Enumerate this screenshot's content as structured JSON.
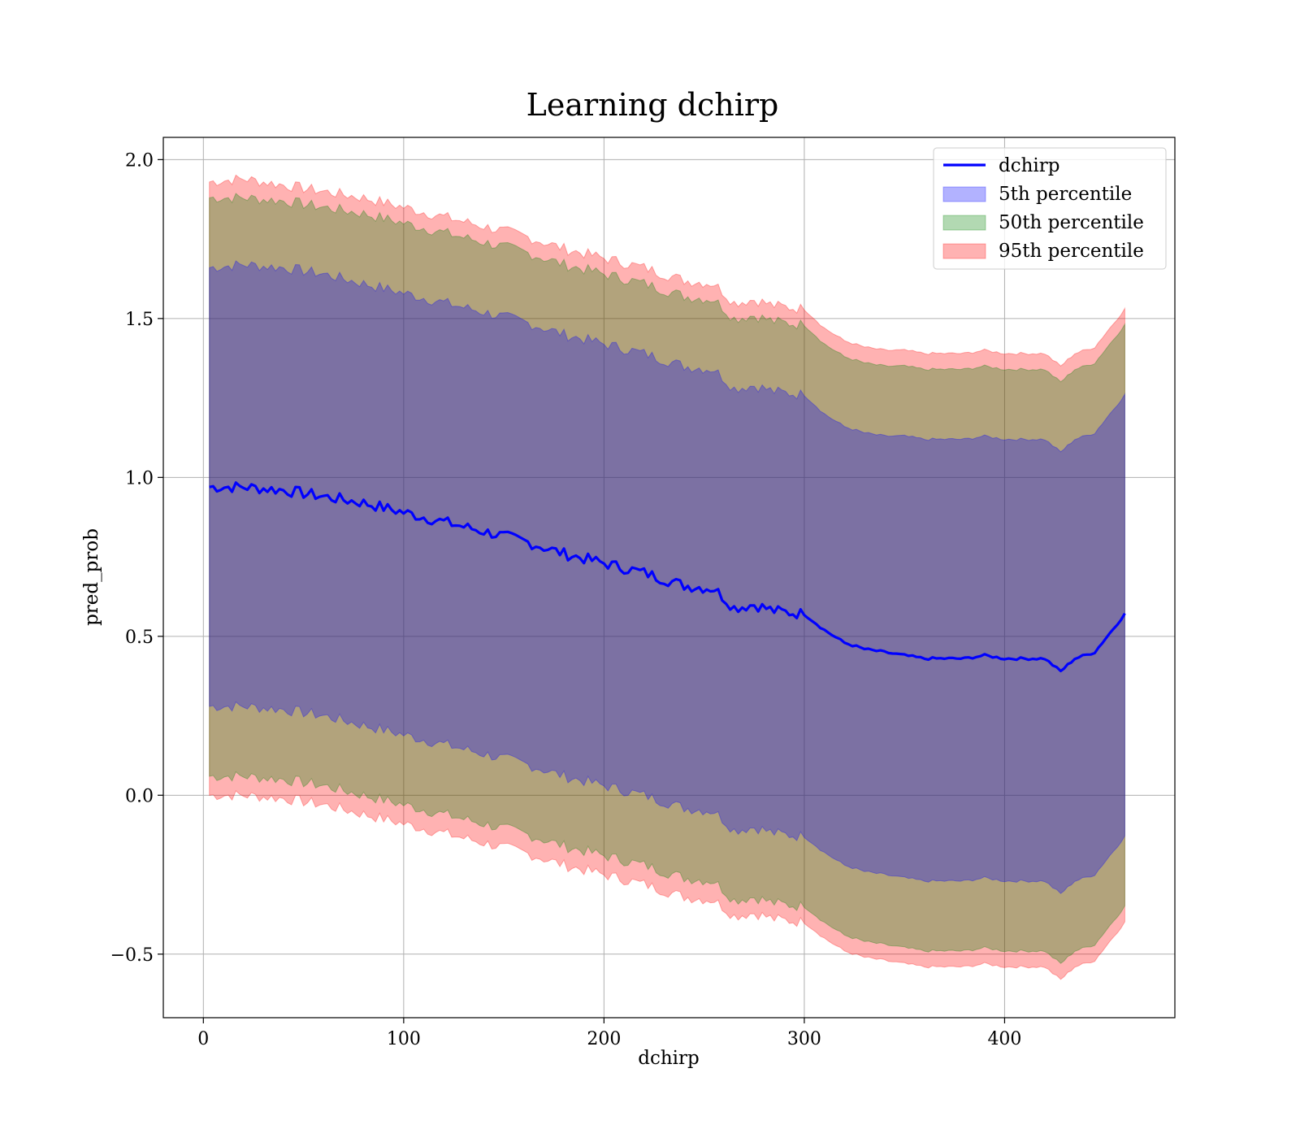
{
  "chart_data": {
    "type": "line",
    "title": "Learning dchirp",
    "xlabel": "dchirp",
    "ylabel": "pred_prob",
    "xlim": [
      -20,
      485
    ],
    "ylim": [
      -0.7,
      2.07
    ],
    "x_ticks": [
      0,
      100,
      200,
      300,
      400
    ],
    "y_ticks": [
      -0.5,
      0.0,
      0.5,
      1.0,
      1.5,
      2.0
    ],
    "x_tick_labels": [
      "0",
      "100",
      "200",
      "300",
      "400"
    ],
    "y_tick_labels": [
      "−0.5",
      "0.0",
      "0.5",
      "1.0",
      "1.5",
      "2.0"
    ],
    "grid": true,
    "legend_position": "top-right",
    "x": [
      3,
      20,
      40,
      60,
      80,
      100,
      120,
      140,
      160,
      180,
      200,
      220,
      240,
      255,
      265,
      275,
      285,
      300,
      310,
      320,
      330,
      340,
      350,
      360,
      370,
      380,
      390,
      400,
      410,
      420,
      428,
      435,
      445,
      460
    ],
    "series": [
      {
        "name": "dchirp",
        "kind": "line",
        "color": "#0000ff",
        "values": [
          0.97,
          0.97,
          0.96,
          0.94,
          0.92,
          0.89,
          0.86,
          0.83,
          0.8,
          0.76,
          0.73,
          0.7,
          0.66,
          0.65,
          0.59,
          0.6,
          0.58,
          0.57,
          0.52,
          0.48,
          0.46,
          0.45,
          0.44,
          0.43,
          0.43,
          0.43,
          0.44,
          0.43,
          0.43,
          0.43,
          0.39,
          0.43,
          0.45,
          0.57
        ]
      },
      {
        "name": "5th percentile",
        "kind": "band",
        "color": "#0000ff",
        "opacity": 0.3,
        "upper": [
          1.66,
          1.67,
          1.66,
          1.64,
          1.61,
          1.58,
          1.55,
          1.52,
          1.49,
          1.45,
          1.42,
          1.39,
          1.35,
          1.34,
          1.28,
          1.29,
          1.27,
          1.26,
          1.2,
          1.16,
          1.14,
          1.13,
          1.13,
          1.12,
          1.12,
          1.12,
          1.13,
          1.12,
          1.12,
          1.12,
          1.08,
          1.12,
          1.14,
          1.26
        ],
        "lower": [
          0.28,
          0.28,
          0.27,
          0.25,
          0.22,
          0.19,
          0.16,
          0.13,
          0.1,
          0.06,
          0.03,
          0.0,
          -0.04,
          -0.05,
          -0.11,
          -0.1,
          -0.12,
          -0.13,
          -0.18,
          -0.22,
          -0.24,
          -0.25,
          -0.26,
          -0.27,
          -0.27,
          -0.27,
          -0.26,
          -0.27,
          -0.27,
          -0.27,
          -0.31,
          -0.27,
          -0.25,
          -0.13
        ]
      },
      {
        "name": "50th percentile",
        "kind": "band",
        "color": "#008000",
        "opacity": 0.3,
        "upper": [
          1.88,
          1.88,
          1.87,
          1.85,
          1.83,
          1.8,
          1.77,
          1.74,
          1.71,
          1.67,
          1.64,
          1.61,
          1.57,
          1.56,
          1.5,
          1.51,
          1.49,
          1.48,
          1.42,
          1.38,
          1.36,
          1.35,
          1.35,
          1.34,
          1.34,
          1.34,
          1.35,
          1.34,
          1.34,
          1.34,
          1.3,
          1.34,
          1.36,
          1.48
        ],
        "lower": [
          0.06,
          0.06,
          0.05,
          0.03,
          0.0,
          -0.03,
          -0.06,
          -0.09,
          -0.12,
          -0.16,
          -0.19,
          -0.22,
          -0.26,
          -0.27,
          -0.33,
          -0.32,
          -0.34,
          -0.35,
          -0.4,
          -0.44,
          -0.46,
          -0.47,
          -0.48,
          -0.49,
          -0.49,
          -0.49,
          -0.48,
          -0.49,
          -0.49,
          -0.49,
          -0.53,
          -0.49,
          -0.47,
          -0.35
        ]
      },
      {
        "name": "95th percentile",
        "kind": "band",
        "color": "#ff0000",
        "opacity": 0.3,
        "upper": [
          1.93,
          1.94,
          1.92,
          1.9,
          1.88,
          1.85,
          1.82,
          1.79,
          1.76,
          1.72,
          1.69,
          1.66,
          1.62,
          1.61,
          1.55,
          1.56,
          1.54,
          1.53,
          1.47,
          1.43,
          1.41,
          1.4,
          1.4,
          1.39,
          1.39,
          1.39,
          1.4,
          1.39,
          1.39,
          1.39,
          1.35,
          1.39,
          1.41,
          1.53
        ],
        "lower": [
          0.0,
          0.0,
          -0.01,
          -0.03,
          -0.06,
          -0.09,
          -0.12,
          -0.15,
          -0.18,
          -0.22,
          -0.25,
          -0.28,
          -0.32,
          -0.33,
          -0.38,
          -0.37,
          -0.39,
          -0.4,
          -0.45,
          -0.49,
          -0.51,
          -0.52,
          -0.53,
          -0.54,
          -0.54,
          -0.54,
          -0.53,
          -0.54,
          -0.54,
          -0.54,
          -0.58,
          -0.54,
          -0.52,
          -0.4
        ]
      }
    ]
  }
}
